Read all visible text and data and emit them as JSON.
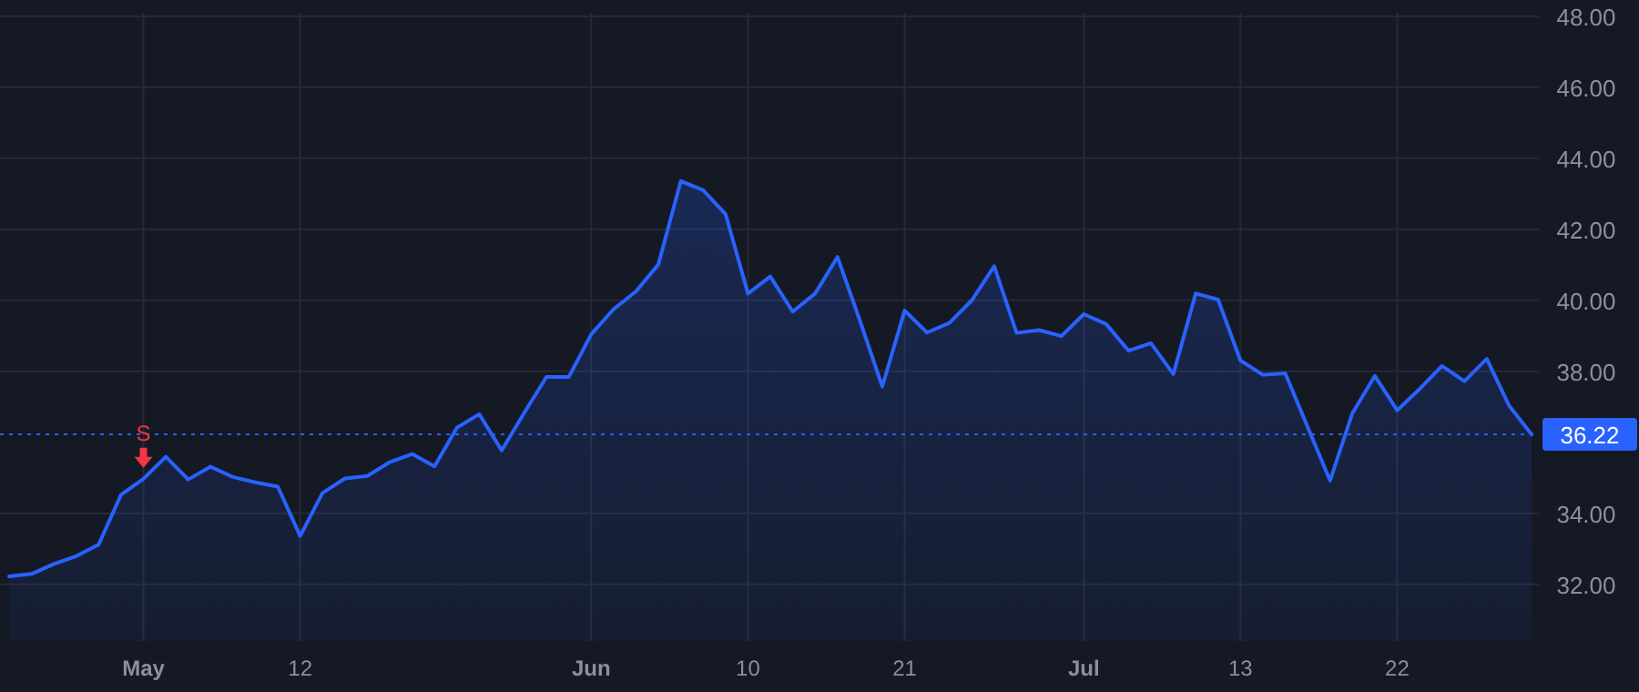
{
  "chart_data": {
    "type": "area",
    "categories": [
      null,
      null,
      null,
      null,
      null,
      null,
      "May",
      null,
      null,
      null,
      null,
      null,
      null,
      "12",
      null,
      null,
      null,
      null,
      null,
      null,
      null,
      null,
      null,
      null,
      null,
      null,
      "Jun",
      null,
      null,
      null,
      null,
      null,
      null,
      "10",
      null,
      null,
      null,
      null,
      null,
      null,
      "21",
      null,
      null,
      null,
      null,
      null,
      null,
      null,
      "Jul",
      null,
      null,
      null,
      null,
      null,
      null,
      "13",
      null,
      null,
      null,
      null,
      null,
      null,
      "22",
      null,
      null,
      null,
      null,
      null,
      null
    ],
    "series": [
      {
        "color": "#2962ff",
        "values": [
          32.22,
          32.29,
          32.57,
          32.79,
          33.12,
          34.52,
          34.97,
          35.59,
          34.95,
          35.31,
          35.02,
          34.87,
          34.75,
          33.36,
          34.57,
          34.98,
          35.05,
          35.44,
          35.67,
          35.32,
          36.41,
          36.79,
          35.77,
          36.82,
          37.84,
          37.84,
          39.04,
          39.75,
          40.25,
          41.01,
          43.36,
          43.1,
          42.43,
          40.19,
          40.67,
          39.68,
          40.19,
          41.22,
          39.43,
          37.57,
          39.71,
          39.09,
          39.36,
          40.0,
          40.96,
          39.08,
          39.16,
          38.99,
          39.61,
          39.33,
          38.58,
          38.79,
          37.92,
          40.19,
          40.02,
          38.3,
          37.9,
          37.94,
          36.43,
          34.92,
          36.82,
          37.87,
          36.9,
          37.5,
          38.15,
          37.72,
          38.35,
          37.03,
          36.22
        ]
      }
    ],
    "ylim": [
      30.4,
      48.1
    ],
    "yticks": [
      {
        "value": 32,
        "label": "32.00"
      },
      {
        "value": 34,
        "label": "34.00"
      },
      {
        "value": 38,
        "label": "38.00"
      },
      {
        "value": 40,
        "label": "40.00"
      },
      {
        "value": 42,
        "label": "42.00"
      },
      {
        "value": 44,
        "label": "44.00"
      },
      {
        "value": 46,
        "label": "46.00"
      },
      {
        "value": 48,
        "label": "48.00"
      }
    ],
    "ref_lines": [
      {
        "axis": "y",
        "value": 36.22,
        "label": "36.22",
        "color": "#2962ff",
        "line_style": "dotted"
      }
    ],
    "annotations": [
      {
        "text": "S",
        "x": "May",
        "y": 34.97
      }
    ],
    "grid": true,
    "marker": "none",
    "line_style": "solid"
  }
}
